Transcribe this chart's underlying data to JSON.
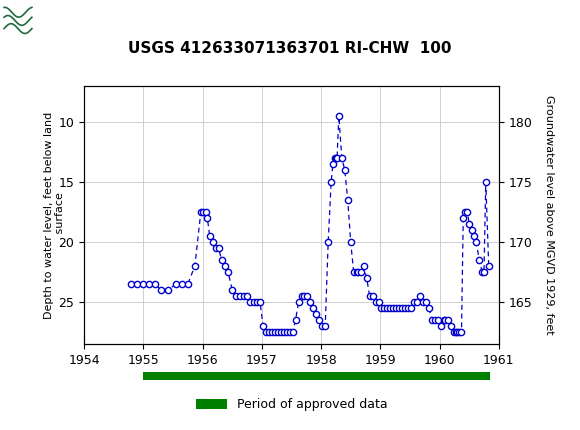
{
  "title": "USGS 412633071363701 RI-CHW  100",
  "ylabel_left": "Depth to water level, feet below land\n surface",
  "ylabel_right": "Groundwater level above MGVD 1929, feet",
  "xlim": [
    1954,
    1961
  ],
  "ylim_left_top": 7.0,
  "ylim_left_bottom": 28.5,
  "xticks": [
    1954,
    1955,
    1956,
    1957,
    1958,
    1959,
    1960,
    1961
  ],
  "yticks_left": [
    10,
    15,
    20,
    25
  ],
  "yticks_right": [
    165,
    170,
    175,
    180
  ],
  "line_color": "#0000cc",
  "marker_facecolor": "#ffffff",
  "marker_edgecolor": "#0000cc",
  "approved_bar_color": "#008000",
  "approved_bar_x_start": 1955.0,
  "approved_bar_x_end": 1960.85,
  "header_bg_color": "#1e6b3c",
  "grid_color": "#c8c8c8",
  "legend_label": "Period of approved data",
  "pts": [
    [
      1954.8,
      23.5
    ],
    [
      1954.9,
      23.5
    ],
    [
      1955.0,
      23.5
    ],
    [
      1955.1,
      23.5
    ],
    [
      1955.2,
      23.5
    ],
    [
      1955.3,
      24.0
    ],
    [
      1955.42,
      24.0
    ],
    [
      1955.55,
      23.5
    ],
    [
      1955.65,
      23.5
    ],
    [
      1955.75,
      23.5
    ],
    [
      1955.87,
      22.0
    ],
    [
      1955.97,
      17.5
    ],
    [
      1956.0,
      17.5
    ],
    [
      1956.05,
      17.5
    ],
    [
      1956.08,
      18.0
    ],
    [
      1956.12,
      19.5
    ],
    [
      1956.17,
      20.0
    ],
    [
      1956.22,
      20.5
    ],
    [
      1956.27,
      20.5
    ],
    [
      1956.32,
      21.5
    ],
    [
      1956.37,
      22.0
    ],
    [
      1956.43,
      22.5
    ],
    [
      1956.5,
      24.0
    ],
    [
      1956.57,
      24.5
    ],
    [
      1956.63,
      24.5
    ],
    [
      1956.7,
      24.5
    ],
    [
      1956.75,
      24.5
    ],
    [
      1956.8,
      25.0
    ],
    [
      1956.87,
      25.0
    ],
    [
      1956.92,
      25.0
    ],
    [
      1956.97,
      25.0
    ],
    [
      1957.02,
      27.0
    ],
    [
      1957.07,
      27.5
    ],
    [
      1957.12,
      27.5
    ],
    [
      1957.17,
      27.5
    ],
    [
      1957.22,
      27.5
    ],
    [
      1957.27,
      27.5
    ],
    [
      1957.32,
      27.5
    ],
    [
      1957.37,
      27.5
    ],
    [
      1957.42,
      27.5
    ],
    [
      1957.47,
      27.5
    ],
    [
      1957.52,
      27.5
    ],
    [
      1957.57,
      26.5
    ],
    [
      1957.62,
      25.0
    ],
    [
      1957.67,
      24.5
    ],
    [
      1957.72,
      24.5
    ],
    [
      1957.77,
      24.5
    ],
    [
      1957.82,
      25.0
    ],
    [
      1957.87,
      25.5
    ],
    [
      1957.92,
      26.0
    ],
    [
      1957.97,
      26.5
    ],
    [
      1958.02,
      27.0
    ],
    [
      1958.07,
      27.0
    ],
    [
      1958.12,
      20.0
    ],
    [
      1958.17,
      15.0
    ],
    [
      1958.2,
      13.5
    ],
    [
      1958.23,
      13.0
    ],
    [
      1958.25,
      13.0
    ],
    [
      1958.27,
      13.0
    ],
    [
      1958.3,
      9.5
    ],
    [
      1958.35,
      13.0
    ],
    [
      1958.4,
      14.0
    ],
    [
      1958.45,
      16.5
    ],
    [
      1958.5,
      20.0
    ],
    [
      1958.55,
      22.5
    ],
    [
      1958.6,
      22.5
    ],
    [
      1958.63,
      22.5
    ],
    [
      1958.67,
      22.5
    ],
    [
      1958.72,
      22.0
    ],
    [
      1958.77,
      23.0
    ],
    [
      1958.82,
      24.5
    ],
    [
      1958.87,
      24.5
    ],
    [
      1958.92,
      25.0
    ],
    [
      1958.97,
      25.0
    ],
    [
      1959.02,
      25.5
    ],
    [
      1959.07,
      25.5
    ],
    [
      1959.12,
      25.5
    ],
    [
      1959.17,
      25.5
    ],
    [
      1959.22,
      25.5
    ],
    [
      1959.27,
      25.5
    ],
    [
      1959.32,
      25.5
    ],
    [
      1959.37,
      25.5
    ],
    [
      1959.42,
      25.5
    ],
    [
      1959.47,
      25.5
    ],
    [
      1959.52,
      25.5
    ],
    [
      1959.57,
      25.0
    ],
    [
      1959.62,
      25.0
    ],
    [
      1959.67,
      24.5
    ],
    [
      1959.72,
      25.0
    ],
    [
      1959.77,
      25.0
    ],
    [
      1959.82,
      25.5
    ],
    [
      1959.87,
      26.5
    ],
    [
      1959.92,
      26.5
    ],
    [
      1959.97,
      26.5
    ],
    [
      1960.02,
      27.0
    ],
    [
      1960.07,
      26.5
    ],
    [
      1960.1,
      26.5
    ],
    [
      1960.15,
      26.5
    ],
    [
      1960.2,
      27.0
    ],
    [
      1960.25,
      27.5
    ],
    [
      1960.27,
      27.5
    ],
    [
      1960.3,
      27.5
    ],
    [
      1960.33,
      27.5
    ],
    [
      1960.37,
      27.5
    ],
    [
      1960.4,
      18.0
    ],
    [
      1960.43,
      17.5
    ],
    [
      1960.47,
      17.5
    ],
    [
      1960.5,
      18.5
    ],
    [
      1960.55,
      19.0
    ],
    [
      1960.58,
      19.5
    ],
    [
      1960.62,
      20.0
    ],
    [
      1960.67,
      21.5
    ],
    [
      1960.72,
      22.5
    ],
    [
      1960.75,
      22.5
    ],
    [
      1960.78,
      15.0
    ],
    [
      1960.83,
      22.0
    ]
  ]
}
